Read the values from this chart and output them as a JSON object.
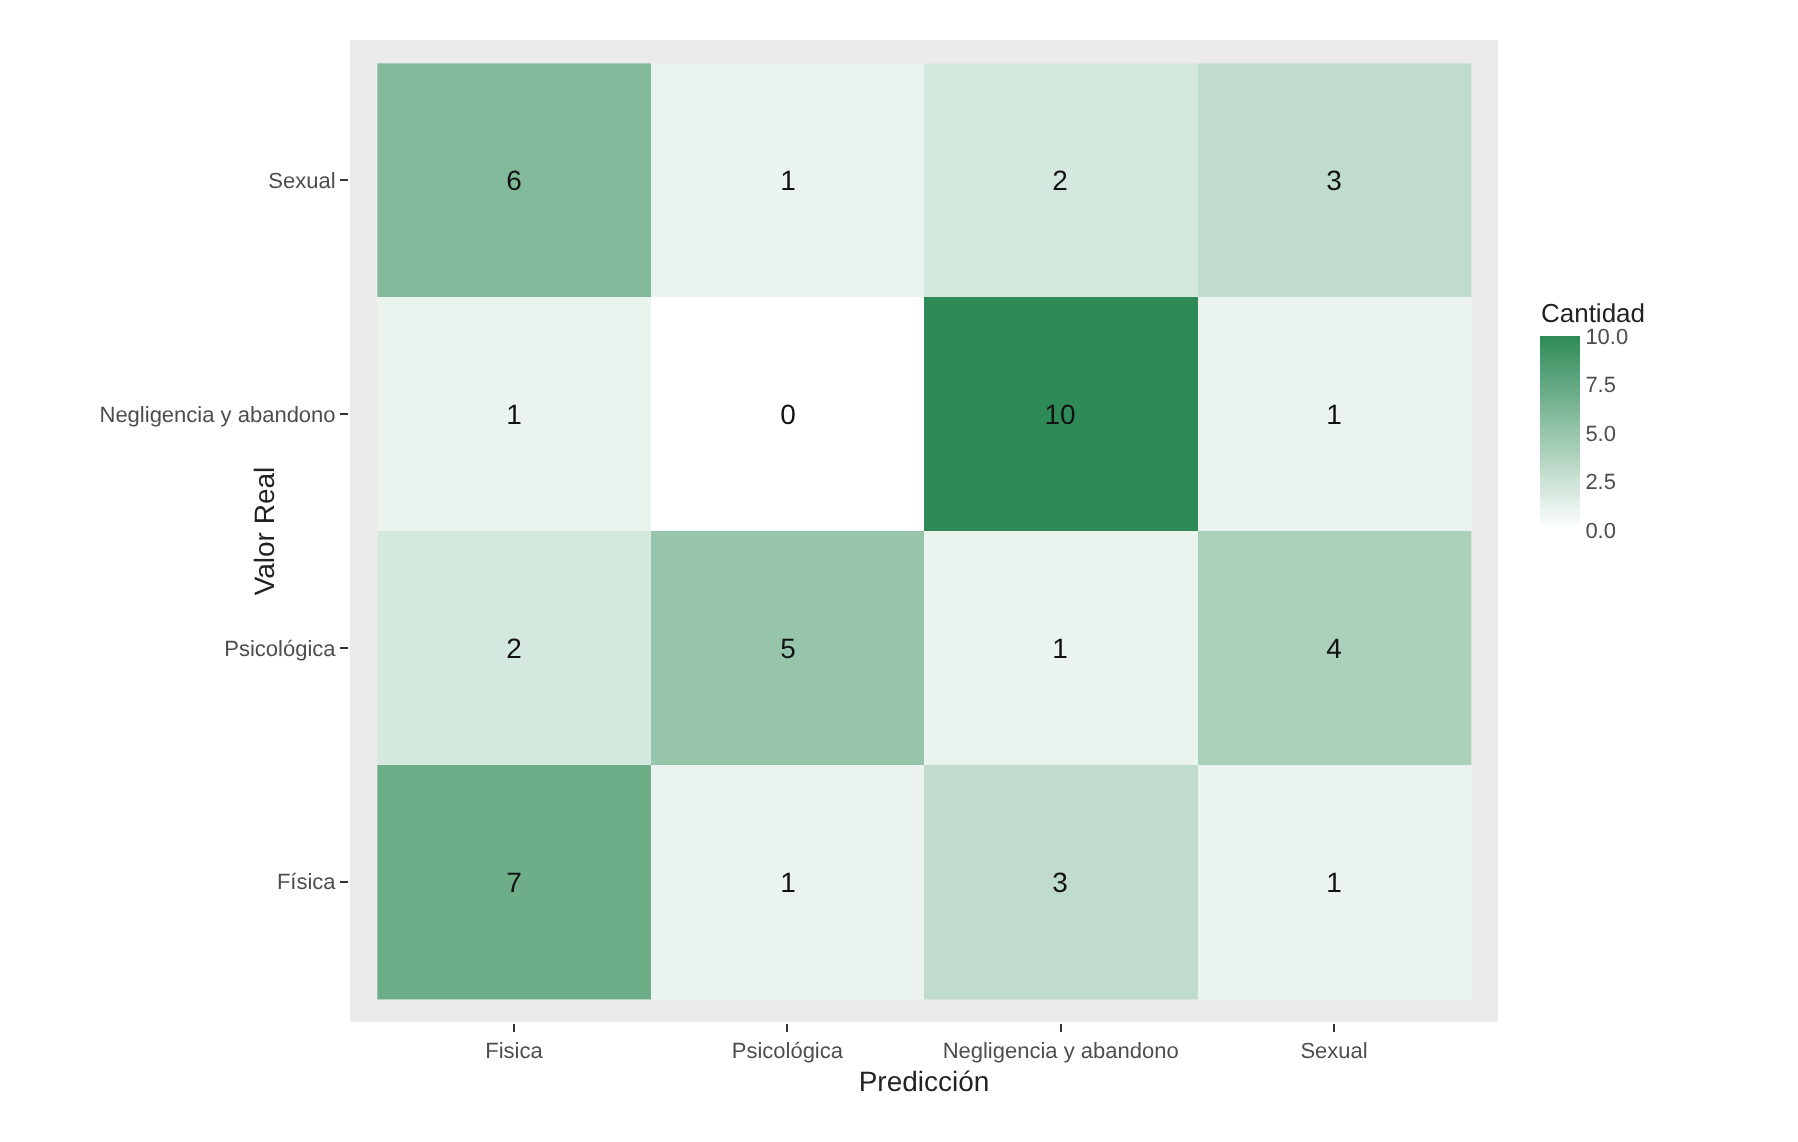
{
  "chart_data": {
    "type": "heatmap",
    "xlabel": "Predicción",
    "ylabel": "Valor Real",
    "clabel": "Cantidad",
    "categories": [
      "Fisica",
      "Psicológica",
      "Negligencia y abandono",
      "Sexual"
    ],
    "y_categories": [
      "Sexual",
      "Negligencia y abandono",
      "Psicológica",
      "Física"
    ],
    "cells": [
      [
        6,
        1,
        2,
        3
      ],
      [
        1,
        0,
        10,
        1
      ],
      [
        2,
        5,
        1,
        4
      ],
      [
        7,
        1,
        3,
        1
      ]
    ],
    "color": "#2e8b57",
    "clim": [
      0,
      10
    ],
    "cticks": [
      {
        "value": 0,
        "label": "0.0"
      },
      {
        "value": 2.5,
        "label": "2.5"
      },
      {
        "value": 5,
        "label": "5.0"
      },
      {
        "value": 7.5,
        "label": "7.5"
      },
      {
        "value": 10,
        "label": "10.0"
      }
    ],
    "data_labels": true
  }
}
